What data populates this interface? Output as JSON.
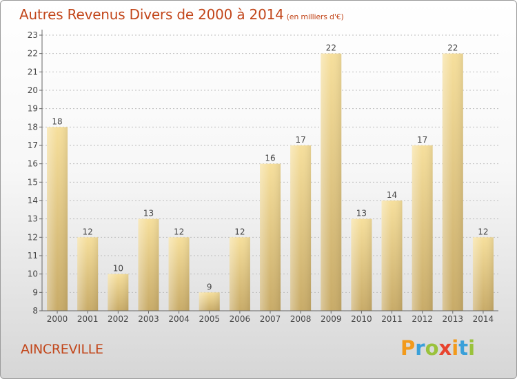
{
  "title": "Autres Revenus Divers de 2000 à 2014",
  "subtitle": "(en milliers d'€)",
  "location": "AINCREVILLE",
  "brand": "Proxiti",
  "colors": {
    "title": "#c2461a",
    "bar_light": "#f6df9c",
    "bar_dark": "#c9ad6b",
    "grid": "#bdbdbd"
  },
  "chart_data": {
    "type": "bar",
    "title": "Autres Revenus Divers de 2000 à 2014",
    "subtitle": "(en milliers d'€)",
    "xlabel": "",
    "ylabel": "",
    "categories": [
      "2000",
      "2001",
      "2002",
      "2003",
      "2004",
      "2005",
      "2006",
      "2007",
      "2008",
      "2009",
      "2010",
      "2011",
      "2012",
      "2013",
      "2014"
    ],
    "values": [
      18,
      12,
      10,
      13,
      12,
      9,
      12,
      16,
      17,
      22,
      13,
      14,
      17,
      22,
      12
    ],
    "ylim": [
      8,
      23
    ],
    "yticks": [
      8,
      9,
      10,
      11,
      12,
      13,
      14,
      15,
      16,
      17,
      18,
      19,
      20,
      21,
      22,
      23
    ],
    "grid": true,
    "data_labels": true
  }
}
